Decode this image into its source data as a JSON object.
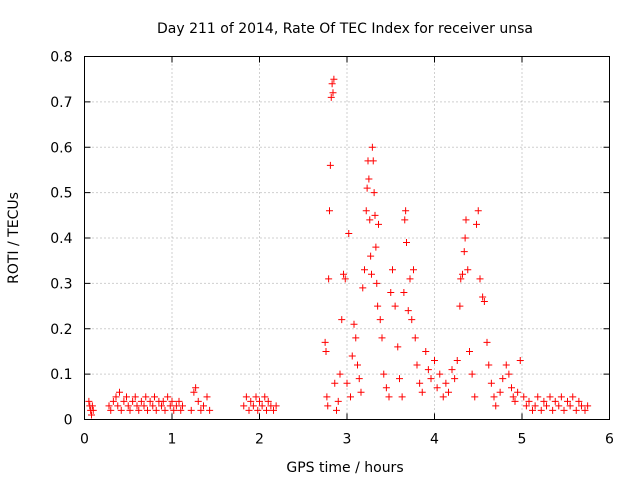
{
  "chart_data": {
    "type": "scatter",
    "title": "Day 211 of 2014, Rate Of TEC Index for receiver unsa",
    "xlabel": "GPS time / hours",
    "ylabel": "ROTI / TECUs",
    "xlim": [
      0,
      6
    ],
    "ylim": [
      0,
      0.8
    ],
    "x_ticks": [
      0,
      1,
      2,
      3,
      4,
      5,
      6
    ],
    "y_ticks": [
      0,
      0.1,
      0.2,
      0.3,
      0.4,
      0.5,
      0.6,
      0.7,
      0.8
    ],
    "x_tick_labels": [
      "0",
      "1",
      "2",
      "3",
      "4",
      "5",
      "6"
    ],
    "y_tick_labels": [
      "0",
      "0.1",
      "0.2",
      "0.3",
      "0.4",
      "0.5",
      "0.6",
      "0.7",
      "0.8"
    ],
    "grid": true,
    "marker": "+",
    "marker_color": "#ff0000",
    "series": [
      {
        "name": "ROTI",
        "points": [
          [
            0.05,
            0.04
          ],
          [
            0.06,
            0.03
          ],
          [
            0.07,
            0.02
          ],
          [
            0.08,
            0.01
          ],
          [
            0.09,
            0.03
          ],
          [
            0.1,
            0.02
          ],
          [
            0.28,
            0.03
          ],
          [
            0.3,
            0.02
          ],
          [
            0.33,
            0.04
          ],
          [
            0.36,
            0.05
          ],
          [
            0.38,
            0.03
          ],
          [
            0.4,
            0.06
          ],
          [
            0.42,
            0.02
          ],
          [
            0.45,
            0.04
          ],
          [
            0.48,
            0.05
          ],
          [
            0.5,
            0.03
          ],
          [
            0.52,
            0.02
          ],
          [
            0.55,
            0.04
          ],
          [
            0.58,
            0.05
          ],
          [
            0.6,
            0.03
          ],
          [
            0.62,
            0.02
          ],
          [
            0.65,
            0.04
          ],
          [
            0.68,
            0.03
          ],
          [
            0.7,
            0.05
          ],
          [
            0.72,
            0.02
          ],
          [
            0.75,
            0.04
          ],
          [
            0.78,
            0.03
          ],
          [
            0.8,
            0.05
          ],
          [
            0.82,
            0.02
          ],
          [
            0.85,
            0.04
          ],
          [
            0.88,
            0.03
          ],
          [
            0.9,
            0.04
          ],
          [
            0.92,
            0.02
          ],
          [
            0.95,
            0.05
          ],
          [
            0.98,
            0.03
          ],
          [
            1.0,
            0.04
          ],
          [
            1.02,
            0.02
          ],
          [
            1.05,
            0.03
          ],
          [
            1.08,
            0.04
          ],
          [
            1.1,
            0.02
          ],
          [
            1.12,
            0.03
          ],
          [
            1.22,
            0.02
          ],
          [
            1.25,
            0.06
          ],
          [
            1.27,
            0.07
          ],
          [
            1.3,
            0.04
          ],
          [
            1.33,
            0.02
          ],
          [
            1.36,
            0.03
          ],
          [
            1.4,
            0.05
          ],
          [
            1.43,
            0.02
          ],
          [
            1.82,
            0.03
          ],
          [
            1.85,
            0.05
          ],
          [
            1.88,
            0.02
          ],
          [
            1.9,
            0.04
          ],
          [
            1.93,
            0.03
          ],
          [
            1.96,
            0.05
          ],
          [
            1.98,
            0.02
          ],
          [
            2.0,
            0.04
          ],
          [
            2.03,
            0.03
          ],
          [
            2.06,
            0.05
          ],
          [
            2.08,
            0.02
          ],
          [
            2.1,
            0.04
          ],
          [
            2.13,
            0.03
          ],
          [
            2.16,
            0.02
          ],
          [
            2.19,
            0.03
          ],
          [
            2.75,
            0.17
          ],
          [
            2.76,
            0.15
          ],
          [
            2.77,
            0.05
          ],
          [
            2.78,
            0.03
          ],
          [
            2.79,
            0.31
          ],
          [
            2.8,
            0.46
          ],
          [
            2.81,
            0.56
          ],
          [
            2.82,
            0.71
          ],
          [
            2.83,
            0.74
          ],
          [
            2.84,
            0.72
          ],
          [
            2.85,
            0.75
          ],
          [
            2.86,
            0.08
          ],
          [
            2.88,
            0.02
          ],
          [
            2.9,
            0.04
          ],
          [
            2.92,
            0.1
          ],
          [
            2.94,
            0.22
          ],
          [
            2.96,
            0.32
          ],
          [
            2.98,
            0.31
          ],
          [
            3.0,
            0.08
          ],
          [
            3.02,
            0.41
          ],
          [
            3.04,
            0.05
          ],
          [
            3.06,
            0.14
          ],
          [
            3.08,
            0.21
          ],
          [
            3.1,
            0.18
          ],
          [
            3.12,
            0.12
          ],
          [
            3.14,
            0.09
          ],
          [
            3.16,
            0.06
          ],
          [
            3.18,
            0.29
          ],
          [
            3.2,
            0.33
          ],
          [
            3.22,
            0.46
          ],
          [
            3.23,
            0.51
          ],
          [
            3.24,
            0.57
          ],
          [
            3.25,
            0.53
          ],
          [
            3.26,
            0.44
          ],
          [
            3.27,
            0.36
          ],
          [
            3.28,
            0.32
          ],
          [
            3.29,
            0.6
          ],
          [
            3.3,
            0.57
          ],
          [
            3.31,
            0.5
          ],
          [
            3.32,
            0.45
          ],
          [
            3.33,
            0.38
          ],
          [
            3.34,
            0.3
          ],
          [
            3.35,
            0.25
          ],
          [
            3.36,
            0.43
          ],
          [
            3.38,
            0.22
          ],
          [
            3.4,
            0.18
          ],
          [
            3.42,
            0.1
          ],
          [
            3.45,
            0.07
          ],
          [
            3.48,
            0.05
          ],
          [
            3.5,
            0.28
          ],
          [
            3.52,
            0.33
          ],
          [
            3.55,
            0.25
          ],
          [
            3.58,
            0.16
          ],
          [
            3.6,
            0.09
          ],
          [
            3.63,
            0.05
          ],
          [
            3.65,
            0.28
          ],
          [
            3.66,
            0.44
          ],
          [
            3.67,
            0.46
          ],
          [
            3.68,
            0.39
          ],
          [
            3.7,
            0.24
          ],
          [
            3.72,
            0.31
          ],
          [
            3.74,
            0.22
          ],
          [
            3.76,
            0.33
          ],
          [
            3.78,
            0.18
          ],
          [
            3.8,
            0.12
          ],
          [
            3.83,
            0.08
          ],
          [
            3.86,
            0.06
          ],
          [
            3.9,
            0.15
          ],
          [
            3.93,
            0.11
          ],
          [
            3.96,
            0.09
          ],
          [
            4.0,
            0.13
          ],
          [
            4.03,
            0.07
          ],
          [
            4.06,
            0.1
          ],
          [
            4.1,
            0.05
          ],
          [
            4.13,
            0.08
          ],
          [
            4.16,
            0.06
          ],
          [
            4.2,
            0.11
          ],
          [
            4.23,
            0.09
          ],
          [
            4.26,
            0.13
          ],
          [
            4.29,
            0.25
          ],
          [
            4.3,
            0.31
          ],
          [
            4.32,
            0.32
          ],
          [
            4.34,
            0.37
          ],
          [
            4.35,
            0.4
          ],
          [
            4.36,
            0.44
          ],
          [
            4.38,
            0.33
          ],
          [
            4.4,
            0.15
          ],
          [
            4.43,
            0.1
          ],
          [
            4.46,
            0.05
          ],
          [
            4.48,
            0.43
          ],
          [
            4.5,
            0.46
          ],
          [
            4.52,
            0.31
          ],
          [
            4.55,
            0.27
          ],
          [
            4.57,
            0.26
          ],
          [
            4.6,
            0.17
          ],
          [
            4.62,
            0.12
          ],
          [
            4.65,
            0.08
          ],
          [
            4.68,
            0.05
          ],
          [
            4.7,
            0.03
          ],
          [
            4.75,
            0.06
          ],
          [
            4.78,
            0.09
          ],
          [
            4.82,
            0.12
          ],
          [
            4.85,
            0.1
          ],
          [
            4.88,
            0.07
          ],
          [
            4.9,
            0.05
          ],
          [
            4.92,
            0.04
          ],
          [
            4.95,
            0.06
          ],
          [
            4.98,
            0.13
          ],
          [
            5.02,
            0.05
          ],
          [
            5.05,
            0.03
          ],
          [
            5.08,
            0.04
          ],
          [
            5.12,
            0.02
          ],
          [
            5.15,
            0.03
          ],
          [
            5.18,
            0.05
          ],
          [
            5.22,
            0.02
          ],
          [
            5.25,
            0.04
          ],
          [
            5.28,
            0.03
          ],
          [
            5.32,
            0.05
          ],
          [
            5.35,
            0.02
          ],
          [
            5.38,
            0.04
          ],
          [
            5.42,
            0.03
          ],
          [
            5.45,
            0.05
          ],
          [
            5.48,
            0.02
          ],
          [
            5.52,
            0.04
          ],
          [
            5.55,
            0.03
          ],
          [
            5.58,
            0.05
          ],
          [
            5.62,
            0.02
          ],
          [
            5.65,
            0.04
          ],
          [
            5.68,
            0.03
          ],
          [
            5.72,
            0.02
          ],
          [
            5.75,
            0.03
          ]
        ]
      }
    ]
  }
}
